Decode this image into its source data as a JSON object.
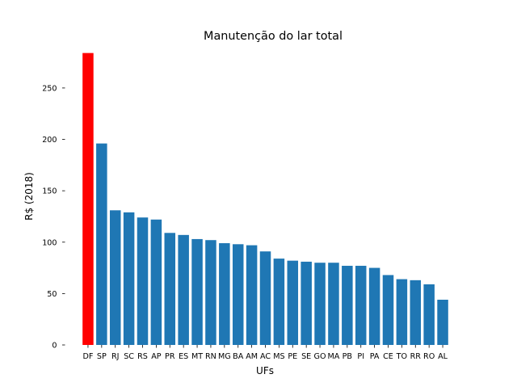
{
  "chart_data": {
    "type": "bar",
    "title": "Manutenção do lar total",
    "xlabel": "UFs",
    "ylabel": "R$ (2018)",
    "categories": [
      "DF",
      "SP",
      "RJ",
      "SC",
      "RS",
      "AP",
      "PR",
      "ES",
      "MT",
      "RN",
      "MG",
      "BA",
      "AM",
      "AC",
      "MS",
      "PE",
      "SE",
      "GO",
      "MA",
      "PB",
      "PI",
      "PA",
      "CE",
      "TO",
      "RR",
      "RO",
      "AL"
    ],
    "values": [
      284,
      196,
      131,
      129,
      124,
      122,
      109,
      107,
      103,
      102,
      99,
      98,
      97,
      91,
      84,
      82,
      81,
      80,
      80,
      77,
      77,
      75,
      68,
      64,
      63,
      59,
      44
    ],
    "highlight": "DF",
    "ylim": [
      0,
      290
    ],
    "yticks": [
      0,
      50,
      100,
      150,
      200,
      250
    ],
    "grid": false,
    "legend": "none",
    "colors": {
      "default_bar": "#1f77b4",
      "highlight_bar": "#ff0000",
      "background": "#ffffff",
      "text": "#000000"
    }
  }
}
